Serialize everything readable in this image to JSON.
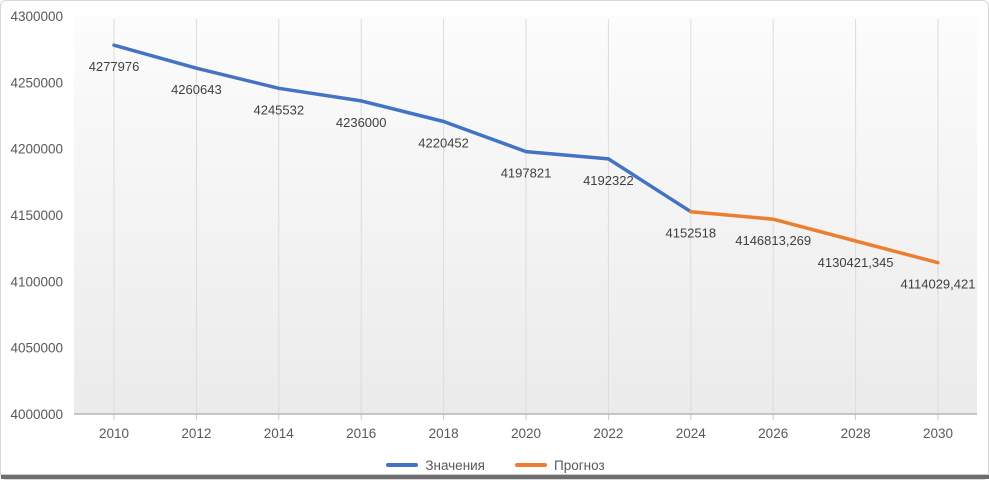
{
  "chart_data": {
    "type": "line",
    "title": "",
    "xlabel": "",
    "ylabel": "",
    "ylim": [
      4000000,
      4300000
    ],
    "ytick_step": 50000,
    "ytick_labels": [
      "4000000",
      "4050000",
      "4100000",
      "4150000",
      "4200000",
      "4250000",
      "4300000"
    ],
    "xticks": [
      2010,
      2012,
      2014,
      2016,
      2018,
      2020,
      2022,
      2024,
      2026,
      2028,
      2030
    ],
    "xtick_labels": [
      "2010",
      "2012",
      "2014",
      "2016",
      "2018",
      "2020",
      "2022",
      "2024",
      "2026",
      "2028",
      "2030"
    ],
    "grid": "vertical-only",
    "legend_position": "bottom",
    "series": [
      {
        "name": "Значения",
        "color": "#4472C4",
        "points": [
          {
            "x": 2010,
            "y": 4277976,
            "label": "4277976"
          },
          {
            "x": 2012,
            "y": 4260643,
            "label": "4260643"
          },
          {
            "x": 2014,
            "y": 4245532,
            "label": "4245532"
          },
          {
            "x": 2016,
            "y": 4236000,
            "label": "4236000"
          },
          {
            "x": 2018,
            "y": 4220452,
            "label": "4220452"
          },
          {
            "x": 2020,
            "y": 4197821,
            "label": "4197821"
          },
          {
            "x": 2022,
            "y": 4192322,
            "label": "4192322"
          },
          {
            "x": 2024,
            "y": 4152518,
            "label": "4152518"
          }
        ]
      },
      {
        "name": "Прогноз",
        "color": "#ED7D31",
        "points": [
          {
            "x": 2024,
            "y": 4152518,
            "label": ""
          },
          {
            "x": 2026,
            "y": 4146813.269,
            "label": "4146813,269"
          },
          {
            "x": 2028,
            "y": 4130421.345,
            "label": "4130421,345"
          },
          {
            "x": 2030,
            "y": 4114029.421,
            "label": "4114029,421"
          }
        ]
      }
    ],
    "colors": {
      "plot_bg_top": "#fcfcfc",
      "plot_bg_bottom": "#ebebeb",
      "gridline": "#dcdcdc",
      "axis_line": "#b5b5b5",
      "tick_mark": "#c8c8c8"
    }
  }
}
